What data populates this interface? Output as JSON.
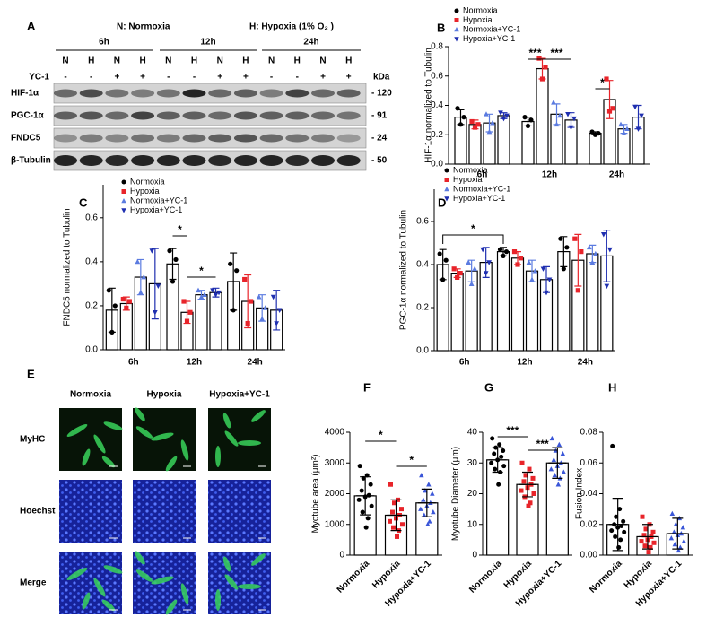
{
  "blot": {
    "label": "A",
    "legend": [
      "N: Normoxia",
      "H: Hypoxia (1% O₂ )"
    ],
    "times": [
      "6h",
      "12h",
      "24h"
    ],
    "lanes": [
      "N",
      "H",
      "N",
      "H",
      "N",
      "H",
      "N",
      "H",
      "N",
      "H",
      "N",
      "H"
    ],
    "yc1_label": "YC-1",
    "yc1": [
      "-",
      "-",
      "+",
      "+",
      "-",
      "-",
      "+",
      "+",
      "-",
      "-",
      "+",
      "+"
    ],
    "kda_label": "kDa",
    "proteins": [
      "HIF-1α",
      "PGC-1α",
      "FNDC5",
      "β-Tubulin"
    ],
    "weights": [
      "- 120",
      "- 91",
      "- 24",
      "- 50"
    ]
  },
  "images": {
    "label": "E",
    "columns": [
      "Normoxia",
      "Hypoxia",
      "Hypoxia+YC-1"
    ],
    "rows": [
      "MyHC",
      "Hoechst",
      "Merge"
    ]
  },
  "chart_data": [
    {
      "type": "bar",
      "label": "B",
      "ylabel": "HIF-1α normalized to Tubulin",
      "categories": [
        "6h",
        "12h",
        "24h"
      ],
      "ylim": [
        0,
        0.8
      ],
      "yticks": [
        {
          "value": 0,
          "label": "0.0"
        },
        0.2,
        0.4,
        0.6,
        0.8
      ],
      "series": [
        {
          "name": "Normoxia",
          "color": "#000000",
          "marker": "circle",
          "values": [
            0.32,
            0.29,
            0.21
          ],
          "errors": [
            0.05,
            0.03,
            0.01
          ],
          "points": [
            [
              0.38,
              0.27,
              0.32
            ],
            [
              0.32,
              0.26,
              0.3
            ],
            [
              0.22,
              0.2,
              0.21
            ]
          ]
        },
        {
          "name": "Hypoxia",
          "color": "#e8242a",
          "marker": "square",
          "values": [
            0.27,
            0.65,
            0.44
          ],
          "errors": [
            0.03,
            0.07,
            0.13
          ],
          "points": [
            [
              0.29,
              0.25,
              0.27
            ],
            [
              0.72,
              0.58,
              0.66
            ],
            [
              0.58,
              0.36,
              0.38
            ]
          ]
        },
        {
          "name": "Normoxia+YC-1",
          "color": "#5b7be0",
          "marker": "triangle",
          "values": [
            0.28,
            0.34,
            0.24
          ],
          "errors": [
            0.06,
            0.07,
            0.03
          ],
          "points": [
            [
              0.34,
              0.22,
              0.28
            ],
            [
              0.42,
              0.27,
              0.33
            ],
            [
              0.27,
              0.21,
              0.24
            ]
          ]
        },
        {
          "name": "Hypoxia+YC-1",
          "color": "#1f2fb0",
          "marker": "triangle-down",
          "values": [
            0.33,
            0.3,
            0.32
          ],
          "errors": [
            0.02,
            0.05,
            0.08
          ],
          "points": [
            [
              0.35,
              0.31,
              0.33
            ],
            [
              0.34,
              0.25,
              0.31
            ],
            [
              0.39,
              0.24,
              0.33
            ]
          ]
        }
      ],
      "annotations": [
        "***",
        "***",
        "*"
      ]
    },
    {
      "type": "bar",
      "label": "C",
      "ylabel": "FNDC5 normalized to Tubulin",
      "categories": [
        "6h",
        "12h",
        "24h"
      ],
      "ylim": [
        0,
        0.75
      ],
      "yticks": [
        {
          "value": 0,
          "label": "0.0"
        },
        0.2,
        0.4,
        0.6
      ],
      "series": [
        {
          "name": "Normoxia",
          "color": "#000000",
          "marker": "circle",
          "values": [
            0.18,
            0.39,
            0.31
          ],
          "errors": [
            0.1,
            0.07,
            0.13
          ],
          "points": [
            [
              0.27,
              0.08,
              0.2
            ],
            [
              0.45,
              0.31,
              0.41
            ],
            [
              0.39,
              0.18,
              0.36
            ]
          ]
        },
        {
          "name": "Hypoxia",
          "color": "#e8242a",
          "marker": "square",
          "values": [
            0.21,
            0.17,
            0.22
          ],
          "errors": [
            0.03,
            0.05,
            0.12
          ],
          "points": [
            [
              0.23,
              0.19,
              0.22
            ],
            [
              0.22,
              0.13,
              0.17
            ],
            [
              0.32,
              0.12,
              0.22
            ]
          ]
        },
        {
          "name": "Normoxia+YC-1",
          "color": "#5b7be0",
          "marker": "triangle",
          "values": [
            0.33,
            0.25,
            0.19
          ],
          "errors": [
            0.08,
            0.02,
            0.06
          ],
          "points": [
            [
              0.4,
              0.26,
              0.33
            ],
            [
              0.27,
              0.24,
              0.25
            ],
            [
              0.24,
              0.14,
              0.19
            ]
          ]
        },
        {
          "name": "Hypoxia+YC-1",
          "color": "#1f2fb0",
          "marker": "triangle-down",
          "values": [
            0.3,
            0.26,
            0.18
          ],
          "errors": [
            0.16,
            0.02,
            0.09
          ],
          "points": [
            [
              0.45,
              0.17,
              0.29
            ],
            [
              0.27,
              0.25,
              0.26
            ],
            [
              0.24,
              0.12,
              0.18
            ]
          ]
        }
      ],
      "annotations": [
        "*",
        "*"
      ]
    },
    {
      "type": "bar",
      "label": "D",
      "ylabel": "PGC-1α normalized to Tubulin",
      "categories": [
        "6h",
        "12h",
        "24h"
      ],
      "ylim": [
        0,
        0.75
      ],
      "yticks": [
        {
          "value": 0,
          "label": "0.0"
        },
        0.2,
        0.4,
        0.6
      ],
      "series": [
        {
          "name": "Normoxia",
          "color": "#000000",
          "marker": "circle",
          "values": [
            0.4,
            0.46,
            0.46
          ],
          "errors": [
            0.07,
            0.02,
            0.07
          ],
          "points": [
            [
              0.45,
              0.33,
              0.42
            ],
            [
              0.47,
              0.44,
              0.46
            ],
            [
              0.52,
              0.38,
              0.48
            ]
          ]
        },
        {
          "name": "Hypoxia",
          "color": "#e8242a",
          "marker": "square",
          "values": [
            0.36,
            0.43,
            0.42
          ],
          "errors": [
            0.02,
            0.03,
            0.12
          ],
          "points": [
            [
              0.38,
              0.34,
              0.36
            ],
            [
              0.46,
              0.4,
              0.43
            ],
            [
              0.52,
              0.28,
              0.46
            ]
          ]
        },
        {
          "name": "Normoxia+YC-1",
          "color": "#5b7be0",
          "marker": "triangle",
          "values": [
            0.37,
            0.37,
            0.45
          ],
          "errors": [
            0.05,
            0.05,
            0.04
          ],
          "points": [
            [
              0.41,
              0.31,
              0.38
            ],
            [
              0.41,
              0.33,
              0.37
            ],
            [
              0.48,
              0.41,
              0.45
            ]
          ]
        },
        {
          "name": "Hypoxia+YC-1",
          "color": "#1f2fb0",
          "marker": "triangle-down",
          "values": [
            0.41,
            0.33,
            0.44
          ],
          "errors": [
            0.07,
            0.06,
            0.12
          ],
          "points": [
            [
              0.47,
              0.36,
              0.41
            ],
            [
              0.38,
              0.27,
              0.33
            ],
            [
              0.54,
              0.3,
              0.47
            ]
          ]
        }
      ],
      "annotations": [
        "*"
      ]
    },
    {
      "type": "bar",
      "label": "F",
      "ylabel": "Myotube area (μm²)",
      "categories": [
        "Normoxia",
        "Hypoxia",
        "Hypoxia+YC-1"
      ],
      "colors": [
        "#000000",
        "#e8242a",
        "#3a56d8"
      ],
      "markers": [
        "circle",
        "square",
        "triangle"
      ],
      "ylim": [
        0,
        4000
      ],
      "yticks": [
        0,
        1000,
        2000,
        3000,
        4000
      ],
      "values": [
        1930,
        1300,
        1700
      ],
      "errors": [
        620,
        500,
        450
      ],
      "points": [
        [
          2900,
          2600,
          2500,
          2300,
          2100,
          1950,
          1900,
          1800,
          1600,
          1400,
          1200,
          900
        ],
        [
          2300,
          1800,
          1700,
          1500,
          1400,
          1300,
          1200,
          1100,
          1000,
          900,
          800,
          600
        ],
        [
          2600,
          2300,
          2100,
          2000,
          1800,
          1700,
          1600,
          1500,
          1400,
          1300,
          1100,
          1000
        ]
      ],
      "annotations": [
        "*",
        "*"
      ]
    },
    {
      "type": "bar",
      "label": "G",
      "ylabel": "Myotube Diameter (μm)",
      "categories": [
        "Normoxia",
        "Hypoxia",
        "Hypoxia+YC-1"
      ],
      "colors": [
        "#000000",
        "#e8242a",
        "#3a56d8"
      ],
      "markers": [
        "circle",
        "square",
        "triangle"
      ],
      "ylim": [
        0,
        40
      ],
      "yticks": [
        0,
        10,
        20,
        30,
        40
      ],
      "values": [
        31,
        23,
        30
      ],
      "errors": [
        4,
        4,
        5
      ],
      "points": [
        [
          38,
          36,
          35,
          34,
          33,
          32,
          31,
          30,
          29,
          28,
          27,
          23
        ],
        [
          30,
          28,
          26,
          25,
          24,
          23,
          22,
          21,
          20,
          19,
          17,
          16
        ],
        [
          38,
          36,
          34,
          33,
          31,
          30,
          29,
          28,
          27,
          26,
          25,
          23
        ]
      ],
      "annotations": [
        "***",
        "***"
      ]
    },
    {
      "type": "bar",
      "label": "H",
      "ylabel": "Fusion Index",
      "categories": [
        "Normoxia",
        "Hypoxia",
        "Hypoxia+YC-1"
      ],
      "colors": [
        "#000000",
        "#e8242a",
        "#3a56d8"
      ],
      "markers": [
        "circle",
        "square",
        "triangle"
      ],
      "ylim": [
        0,
        0.08
      ],
      "yticks": [
        {
          "value": 0,
          "label": "0.00"
        },
        {
          "value": 0.02,
          "label": "0.02"
        },
        {
          "value": 0.04,
          "label": "0.04"
        },
        {
          "value": 0.06,
          "label": "0.06"
        },
        {
          "value": 0.08,
          "label": "0.08"
        }
      ],
      "values": [
        0.02,
        0.012,
        0.014
      ],
      "errors": [
        0.017,
        0.008,
        0.01
      ],
      "points": [
        [
          0.071,
          0.03,
          0.025,
          0.022,
          0.02,
          0.019,
          0.018,
          0.016,
          0.015,
          0.012,
          0.01,
          0.005
        ],
        [
          0.025,
          0.02,
          0.017,
          0.015,
          0.013,
          0.012,
          0.01,
          0.009,
          0.008,
          0.006,
          0.005,
          0.002
        ],
        [
          0.027,
          0.024,
          0.02,
          0.018,
          0.015,
          0.014,
          0.013,
          0.011,
          0.009,
          0.007,
          0.005,
          0.003
        ]
      ],
      "annotations": []
    }
  ]
}
